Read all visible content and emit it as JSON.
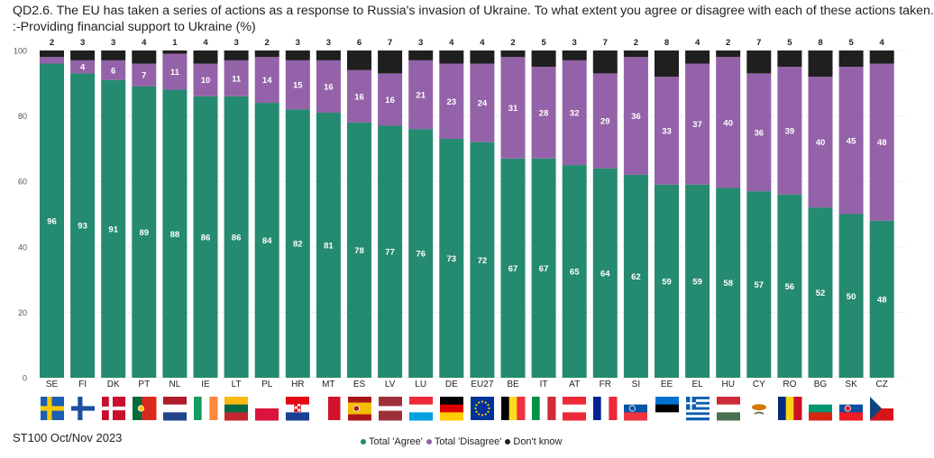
{
  "title_line1": "QD2.6. The EU has taken a series of actions as a response to Russia's invasion of Ukraine. To what extent you agree or disagree with each of these actions taken.",
  "title_line2": ":-Providing financial support to Ukraine (%)",
  "source": "ST100 Oct/Nov 2023",
  "colors": {
    "agree": "#248a70",
    "disagree": "#9462a8",
    "dontknow": "#1f1f1f",
    "grid": "#d9d9d9"
  },
  "chart_data": {
    "type": "bar",
    "stacked": true,
    "title": "QD2.6. The EU has taken a series of actions as a response to Russia's invasion of Ukraine. To what extent you agree or disagree with each of these actions taken. :-Providing financial support to Ukraine (%)",
    "xlabel": "",
    "ylabel": "",
    "ylim": [
      0,
      100
    ],
    "yticks": [
      0,
      20,
      40,
      60,
      80,
      100
    ],
    "legend_position": "bottom",
    "categories": [
      "SE",
      "FI",
      "DK",
      "PT",
      "NL",
      "IE",
      "LT",
      "PL",
      "HR",
      "MT",
      "ES",
      "LV",
      "LU",
      "DE",
      "EU27",
      "BE",
      "IT",
      "AT",
      "FR",
      "SI",
      "EE",
      "EL",
      "HU",
      "CY",
      "RO",
      "BG",
      "SK",
      "CZ"
    ],
    "series": [
      {
        "name": "Total 'Agree'",
        "values": [
          96,
          93,
          91,
          89,
          88,
          86,
          86,
          84,
          82,
          81,
          78,
          77,
          76,
          73,
          72,
          67,
          67,
          65,
          64,
          62,
          59,
          59,
          58,
          57,
          56,
          52,
          50,
          48
        ]
      },
      {
        "name": "Total 'Disagree'",
        "values": [
          2,
          4,
          6,
          7,
          11,
          10,
          11,
          14,
          15,
          16,
          16,
          16,
          21,
          23,
          24,
          31,
          28,
          32,
          29,
          36,
          33,
          37,
          40,
          36,
          39,
          40,
          45,
          48
        ]
      },
      {
        "name": "Don't know",
        "values": [
          2,
          3,
          3,
          4,
          1,
          4,
          3,
          2,
          3,
          3,
          6,
          7,
          3,
          4,
          4,
          2,
          5,
          3,
          7,
          2,
          8,
          4,
          2,
          7,
          5,
          8,
          5,
          4
        ]
      }
    ],
    "disagree_labels": [
      "",
      "4",
      "6",
      "7",
      "11",
      "10",
      "11",
      "14",
      "15",
      "16",
      "16",
      "16",
      "21",
      "23",
      "24",
      "31",
      "28",
      "32",
      "29",
      "36",
      "33",
      "37",
      "40",
      "36",
      "39",
      "40",
      "45",
      "48"
    ]
  }
}
